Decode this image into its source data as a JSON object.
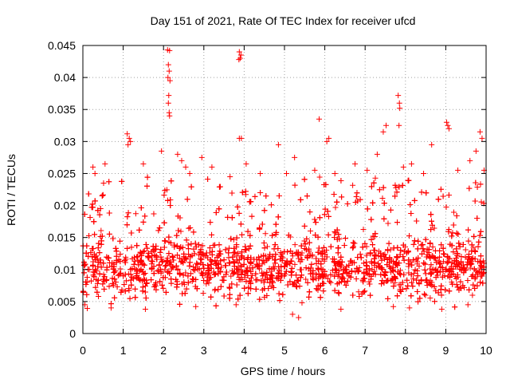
{
  "chart_data": {
    "type": "scatter",
    "title": "Day 151 of 2021, Rate Of TEC Index for receiver ufcd",
    "xlabel": "GPS time / hours",
    "ylabel": "ROTI / TECUs",
    "xlim": [
      0,
      10
    ],
    "ylim": [
      0,
      0.045
    ],
    "x_ticks": [
      0,
      1,
      2,
      3,
      4,
      5,
      6,
      7,
      8,
      9,
      10
    ],
    "x_tick_labels": [
      "0",
      "1",
      "2",
      "3",
      "4",
      "5",
      "6",
      "7",
      "8",
      "9",
      "10"
    ],
    "y_ticks": [
      0,
      0.005,
      0.01,
      0.015,
      0.02,
      0.025,
      0.03,
      0.035,
      0.04,
      0.045
    ],
    "y_tick_labels": [
      "0",
      "0.005",
      "0.01",
      "0.015",
      "0.02",
      "0.025",
      "0.03",
      "0.035",
      "0.04",
      "0.045"
    ],
    "grid": true,
    "marker": "+",
    "marker_color": "#ff0000",
    "series": [
      {
        "name": "ROTI",
        "points": [
          [
            2.1,
            0.0443
          ],
          [
            2.15,
            0.0442
          ],
          [
            2.12,
            0.042
          ],
          [
            2.14,
            0.041
          ],
          [
            2.11,
            0.04
          ],
          [
            2.16,
            0.0395
          ],
          [
            2.13,
            0.0372
          ],
          [
            2.12,
            0.036
          ],
          [
            2.14,
            0.0345
          ],
          [
            2.15,
            0.034
          ],
          [
            3.88,
            0.044
          ],
          [
            3.92,
            0.0435
          ],
          [
            3.9,
            0.043
          ],
          [
            3.87,
            0.0428
          ],
          [
            3.93,
            0.0305
          ],
          [
            3.88,
            0.0305
          ],
          [
            7.82,
            0.0372
          ],
          [
            7.85,
            0.036
          ],
          [
            7.86,
            0.0352
          ],
          [
            7.84,
            0.0325
          ],
          [
            5.86,
            0.0335
          ],
          [
            9.02,
            0.033
          ],
          [
            9.05,
            0.0325
          ],
          [
            9.08,
            0.032
          ],
          [
            1.1,
            0.0312
          ],
          [
            1.15,
            0.0305
          ],
          [
            1.18,
            0.03
          ],
          [
            1.12,
            0.0295
          ],
          [
            4.85,
            0.0295
          ],
          [
            7.52,
            0.0325
          ],
          [
            7.45,
            0.0315
          ],
          [
            6.1,
            0.0305
          ],
          [
            6.05,
            0.03
          ],
          [
            9.85,
            0.0315
          ],
          [
            9.9,
            0.0305
          ],
          [
            8.65,
            0.0295
          ],
          [
            0.25,
            0.026
          ],
          [
            0.3,
            0.025
          ],
          [
            0.55,
            0.0265
          ],
          [
            1.5,
            0.0265
          ],
          [
            1.95,
            0.0285
          ],
          [
            2.35,
            0.028
          ],
          [
            2.45,
            0.027
          ],
          [
            2.55,
            0.026
          ],
          [
            2.65,
            0.025
          ],
          [
            2.95,
            0.0275
          ],
          [
            3.2,
            0.026
          ],
          [
            3.65,
            0.0245
          ],
          [
            4.05,
            0.0265
          ],
          [
            4.4,
            0.025
          ],
          [
            5.05,
            0.025
          ],
          [
            5.25,
            0.0275
          ],
          [
            5.75,
            0.0255
          ],
          [
            6.25,
            0.025
          ],
          [
            6.75,
            0.0265
          ],
          [
            7.05,
            0.0255
          ],
          [
            7.3,
            0.028
          ],
          [
            7.95,
            0.026
          ],
          [
            8.15,
            0.0265
          ],
          [
            8.45,
            0.025
          ],
          [
            9.3,
            0.0255
          ],
          [
            9.6,
            0.027
          ],
          [
            9.75,
            0.0285
          ],
          [
            9.95,
            0.0255
          ],
          [
            0.05,
            0.0045
          ],
          [
            0.7,
            0.004
          ],
          [
            1.55,
            0.0038
          ],
          [
            2.8,
            0.0042
          ],
          [
            3.8,
            0.0045
          ],
          [
            5.2,
            0.003
          ],
          [
            5.35,
            0.0025
          ],
          [
            6.4,
            0.0038
          ],
          [
            7.7,
            0.0042
          ],
          [
            8.1,
            0.004
          ],
          [
            8.9,
            0.0038
          ],
          [
            9.55,
            0.0045
          ]
        ]
      }
    ]
  }
}
